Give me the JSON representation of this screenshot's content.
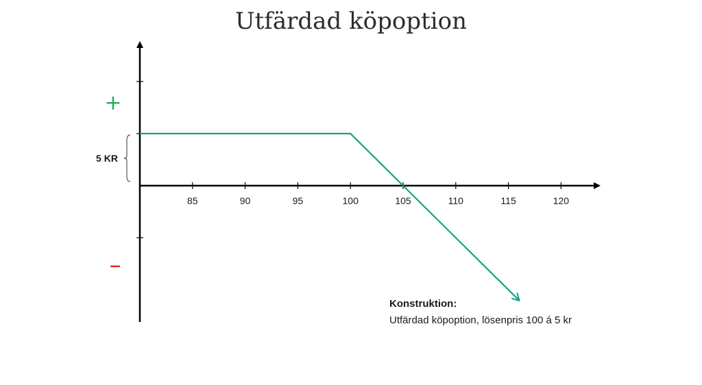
{
  "chart_data": {
    "type": "line",
    "title": "Utfärdad köpoption",
    "x_ticks": [
      85,
      90,
      95,
      100,
      105,
      110,
      115,
      120
    ],
    "x": [
      80,
      100,
      116
    ],
    "y": [
      5,
      5,
      -11
    ],
    "line_color": "#16a085",
    "bracket_label": "5 KR",
    "bracket_range": [
      0,
      5
    ],
    "plus_symbol": "+",
    "minus_symbol": "–",
    "plus_color": "#2eaa5c",
    "minus_color": "#e0241b",
    "grid": false
  },
  "annotation": {
    "heading": "Konstruktion:",
    "text": "Utfärdad köpoption, lösenpris 100 á 5 kr"
  }
}
